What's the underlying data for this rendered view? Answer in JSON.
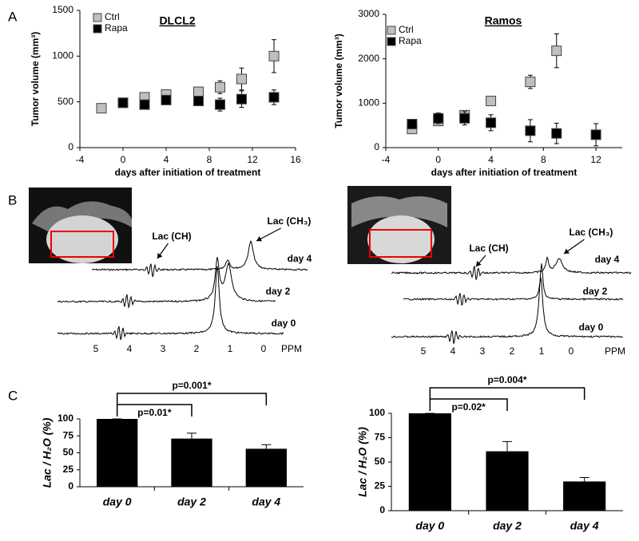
{
  "panel_labels": [
    "A",
    "B",
    "C"
  ],
  "chart_data": [
    {
      "type": "scatter",
      "title": "DLCL2",
      "y_label": "Tumor volume (mm³)",
      "x_label": "days after initiation of treatment",
      "xlim": [
        -4,
        16
      ],
      "xticks": [
        -4,
        0,
        4,
        8,
        12,
        16
      ],
      "ylim": [
        0,
        1500
      ],
      "yticks": [
        0,
        500,
        1000,
        1500
      ],
      "grid": false,
      "legend": "top-left",
      "series": [
        {
          "name": "Ctrl",
          "color": "#bfbfbf",
          "x": [
            -2,
            0,
            2,
            4,
            7,
            9,
            11,
            14
          ],
          "values": [
            430,
            490,
            550,
            580,
            610,
            660,
            750,
            1000
          ],
          "errors": [
            40,
            40,
            40,
            40,
            50,
            70,
            120,
            180
          ]
        },
        {
          "name": "Rapa",
          "color": "#000000",
          "x": [
            0,
            2,
            4,
            7,
            9,
            11,
            14
          ],
          "values": [
            490,
            470,
            520,
            510,
            470,
            530,
            550
          ],
          "errors": [
            40,
            30,
            30,
            40,
            70,
            90,
            80
          ]
        }
      ]
    },
    {
      "type": "scatter",
      "title": "Ramos",
      "y_label": "Tumor volume (mm³)",
      "x_label": "days after initiation of treatment",
      "xlim": [
        -4,
        14
      ],
      "xticks": [
        -4,
        0,
        4,
        8,
        12
      ],
      "ylim": [
        0,
        3000
      ],
      "yticks": [
        0,
        1000,
        2000,
        3000
      ],
      "grid": false,
      "legend": "top-left",
      "series": [
        {
          "name": "Ctrl",
          "color": "#bfbfbf",
          "x": [
            -2,
            0,
            2,
            4,
            7,
            9
          ],
          "values": [
            420,
            600,
            730,
            1050,
            1480,
            2180
          ],
          "errors": [
            60,
            80,
            50,
            40,
            150,
            380
          ]
        },
        {
          "name": "Rapa",
          "color": "#000000",
          "x": [
            -2,
            0,
            2,
            4,
            7,
            9,
            12
          ],
          "values": [
            530,
            660,
            660,
            560,
            380,
            320,
            290
          ],
          "errors": [
            60,
            120,
            150,
            180,
            250,
            230,
            250
          ]
        }
      ]
    },
    {
      "type": "bar",
      "y_label": "Lac / H₂O (%)",
      "categories": [
        "day 0",
        "day 2",
        "day 4"
      ],
      "values": [
        100,
        71,
        56
      ],
      "errors": [
        0,
        8,
        6
      ],
      "color": "#000000",
      "ylim": [
        0,
        100
      ],
      "yticks": [
        0,
        25,
        50,
        75,
        100
      ],
      "grid": false,
      "annotations": [
        "p=0.01*",
        "p=0.001*"
      ]
    },
    {
      "type": "bar",
      "y_label": "Lac / H₂O (%)",
      "categories": [
        "day 0",
        "day 2",
        "day 4"
      ],
      "values": [
        100,
        61,
        30
      ],
      "errors": [
        0,
        10,
        4
      ],
      "color": "#000000",
      "ylim": [
        0,
        100
      ],
      "yticks": [
        0,
        25,
        50,
        75,
        100
      ],
      "grid": false,
      "annotations": [
        "p=0.02*",
        "p=0.004*"
      ]
    }
  ],
  "spectra": [
    {
      "peak_labels": [
        "Lac (CH)",
        "Lac (CH₃)"
      ],
      "traces": [
        "day 4",
        "day 2",
        "day 0"
      ],
      "ppm_ticks": [
        5,
        4,
        3,
        2,
        1,
        0
      ],
      "axis_label": "PPM"
    },
    {
      "peak_labels": [
        "Lac (CH)",
        "Lac (CH₃)"
      ],
      "traces": [
        "day 4",
        "day 2",
        "day 0"
      ],
      "ppm_ticks": [
        5,
        4,
        3,
        2,
        1,
        0
      ],
      "axis_label": "PPM"
    }
  ]
}
